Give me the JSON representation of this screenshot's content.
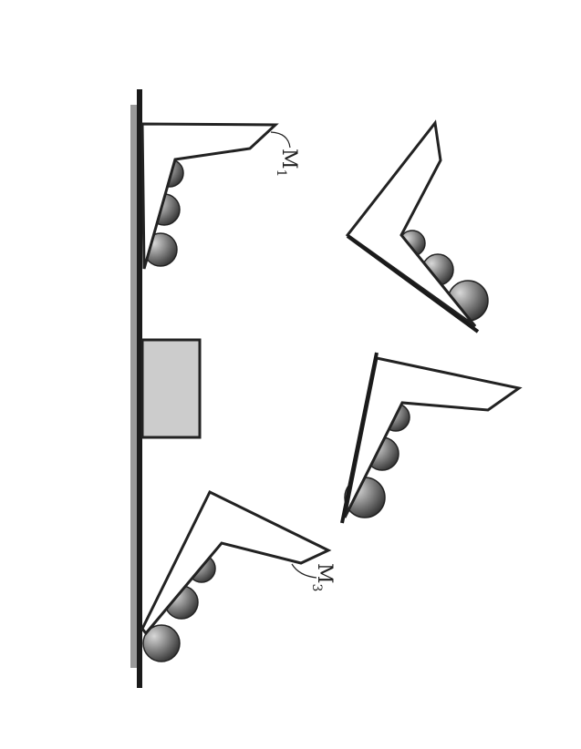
{
  "colors": {
    "stroke": "#222222",
    "base_bar": "#999999",
    "block_fill": "#cccccc",
    "ball_dark": "#2e2e2e",
    "ball_light": "#d8d8d8"
  },
  "labels": {
    "m1_main": "M",
    "m1_sub": "1",
    "m3_main": "M",
    "m3_sub": "3"
  }
}
